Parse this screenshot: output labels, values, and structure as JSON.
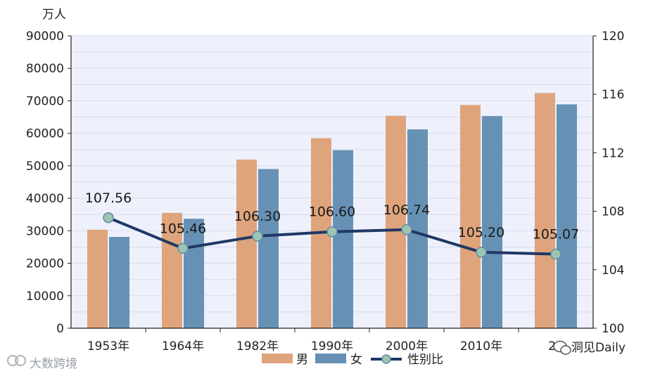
{
  "chart_data": {
    "type": "bar",
    "ylabel": "万人",
    "categories": [
      "1953年",
      "1964年",
      "1982年",
      "1990年",
      "2000年",
      "2010年",
      "20"
    ],
    "ylim": [
      0,
      90000
    ],
    "y2lim": [
      100,
      120
    ],
    "yticks": [
      "0",
      "10000",
      "20000",
      "30000",
      "40000",
      "50000",
      "60000",
      "70000",
      "80000",
      "90000"
    ],
    "y2ticks": [
      "100",
      "104",
      "108",
      "112",
      "116",
      "120"
    ],
    "series": [
      {
        "name": "男",
        "type": "bar",
        "axis": "left",
        "color": "#dfa47c",
        "values": [
          30300,
          35500,
          51900,
          58500,
          65400,
          68700,
          72400
        ]
      },
      {
        "name": "女",
        "type": "bar",
        "axis": "left",
        "color": "#6691b5",
        "values": [
          28100,
          33700,
          49000,
          54800,
          61200,
          65300,
          68900
        ]
      },
      {
        "name": "性别比",
        "type": "line",
        "axis": "right",
        "color": "#1f3864",
        "marker_color": "#9dc3b2",
        "values": [
          107.56,
          105.46,
          106.3,
          106.6,
          106.74,
          105.2,
          105.07
        ],
        "labels": [
          "107.56",
          "105.46",
          "106.30",
          "106.60",
          "106.74",
          "105.20",
          "105.07"
        ]
      }
    ],
    "legend_position": "bottom",
    "grid": true,
    "plot_background": "#eef0fb"
  },
  "watermark": {
    "left": "大数跨境",
    "right": "洞见Daily"
  }
}
